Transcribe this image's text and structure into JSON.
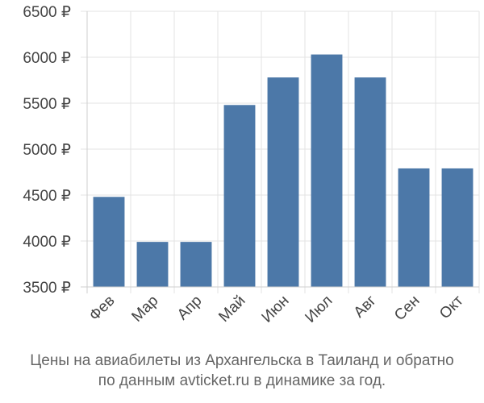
{
  "chart_data": {
    "type": "bar",
    "title": "",
    "xlabel": "",
    "ylabel": "",
    "categories": [
      "Фев",
      "Мар",
      "Апр",
      "Май",
      "Июн",
      "Июл",
      "Авг",
      "Сен",
      "Окт"
    ],
    "values": [
      4480,
      3990,
      3990,
      5480,
      5780,
      6030,
      5780,
      4790,
      4790
    ],
    "ylim": [
      3500,
      6500
    ],
    "yticks": [
      3500,
      4000,
      4500,
      5000,
      5500,
      6000,
      6500
    ],
    "ytick_suffix": " ₽",
    "bar_color": "#4c78a8",
    "grid": true
  },
  "caption": {
    "line1": "Цены на авиабилеты из Архангельска в Таиланд и обратно",
    "line2": "по данным avticket.ru в динамике за год."
  }
}
